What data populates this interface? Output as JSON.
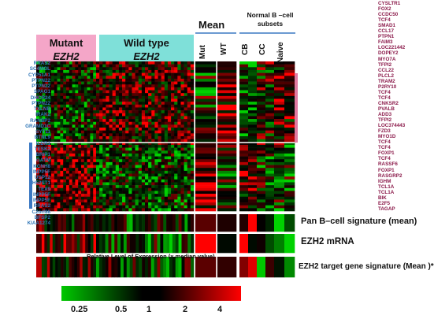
{
  "header": {
    "mutant_line1": "Mutant",
    "mutant_line2": "EZH2",
    "wildtype_line1": "Wild type",
    "wildtype_line2": "EZH2",
    "mean": "Mean",
    "mut_col": "Mut",
    "wt_col": "WT",
    "normal_b_line1": "Normal B –cell",
    "normal_b_line2": "subsets",
    "cb_col": "CB",
    "cc_col": "CC",
    "naive_col": "Naive"
  },
  "left_genes": [
    "RRAS2",
    "SC4MOL",
    "CYP51A1",
    "PTPN22",
    "PTPN22",
    "SPAG1",
    "DHCR24",
    "PTPN22",
    "TXLNB",
    "IRAK2",
    "RANBP2",
    "GRAMD1C",
    "SYT11",
    "BTNL9",
    "ILDR1",
    "TESK2",
    "BRIP1",
    "GATM",
    "KCNH8",
    "INPP5F",
    "USP12",
    "H52ST1",
    "TEX9",
    "INPP5F",
    "INPP5F",
    "RRAS2",
    "C2orf88",
    "BFSP2",
    "KIAA1274"
  ],
  "right_genes": [
    "CYSLTR1",
    "FOX2",
    "CCDC50",
    "TCF4",
    "SMAD1",
    "CCL17",
    "PTPN1",
    "FAIM3",
    "LOC221442",
    "DOPEY2",
    "MYO7A",
    "TFPI2",
    "CCL22",
    "PLCL2",
    "TRAM2",
    "P2RY10",
    "TCF4",
    "TCF4",
    "CNKSR2",
    "PVALB",
    "ADD3",
    "TFPI2",
    "LOC374443",
    "FZD3",
    "MYO1D",
    "TCF4",
    "TCF4",
    "FOXP1",
    "TCF4",
    "RASSF6",
    "FOXP1",
    "RASGRP2",
    "IGHM",
    "TCL1A",
    "TCL1A",
    "BIK",
    "E2F5",
    "TAGAP"
  ],
  "signatures": {
    "pan_b": "Pan B–cell signature (mean)",
    "ezh2_mrna": "EZH2 mRNA",
    "ezh2_target": "EZH2 target gene signature (Mean )*"
  },
  "legend": {
    "title": "Relative Level of Expression (x median value)",
    "ticks": [
      "0.25",
      "0.5",
      "1",
      "2",
      "4"
    ]
  },
  "colors": {
    "mutant_header": "#f4a6c8",
    "wildtype_header": "#7fe0d9",
    "left_gene_text": "#2e75b6",
    "right_gene_text": "#8b1a4a",
    "low_expression": "#00c800",
    "mid_expression": "#000000",
    "high_expression": "#ff0000",
    "group_bar_blue": "#3a78c2",
    "group_bar_pink": "#e07aa0"
  }
}
